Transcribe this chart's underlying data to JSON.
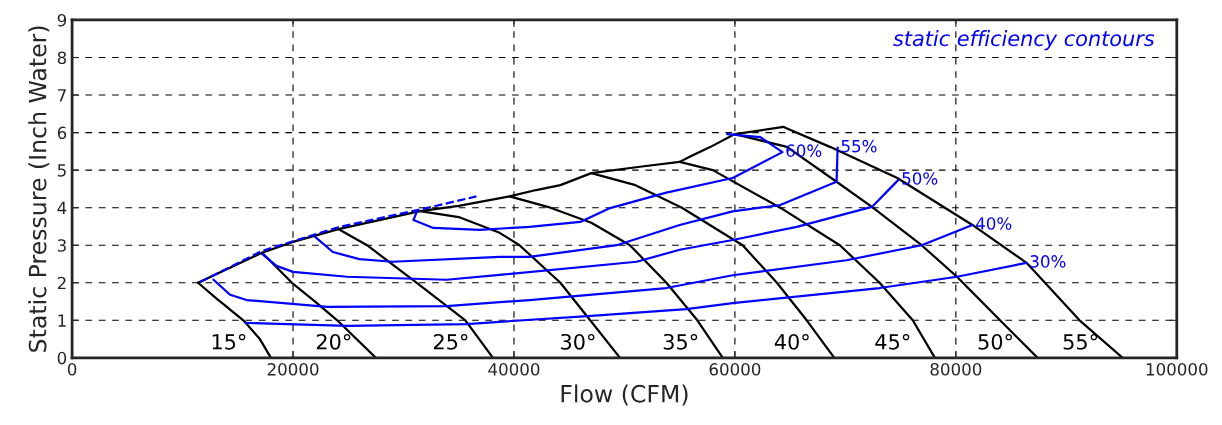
{
  "chart_data": {
    "type": "line",
    "xlabel": "Flow (CFM)",
    "ylabel": "Static Pressure (Inch Water)",
    "annotations": [
      "static efficiency contours"
    ],
    "xlim": [
      0,
      100000
    ],
    "xticks": [
      0,
      20000,
      40000,
      60000,
      80000,
      100000
    ],
    "ylim": [
      0,
      9
    ],
    "yticks": [
      0,
      1,
      2,
      3,
      4,
      5,
      6,
      7,
      8,
      9
    ],
    "grid": true,
    "legend": false,
    "marker": "none",
    "series": [
      {
        "color": "#000000",
        "x": [
          11400,
          17200,
          20000,
          24100,
          31500,
          35000,
          39600,
          42000,
          44200,
          47000,
          51400,
          55000,
          56000,
          57800,
          60000,
          64400
        ],
        "values": [
          2.0,
          2.8,
          3.09,
          3.43,
          3.91,
          4.05,
          4.3,
          4.47,
          4.6,
          4.92,
          5.09,
          5.22,
          5.37,
          5.62,
          5.96,
          6.15
        ]
      },
      {
        "name": "15°",
        "color": "#000000",
        "x": [
          11400,
          13000,
          15500,
          17000,
          18000
        ],
        "values": [
          2.0,
          1.6,
          1.0,
          0.5,
          0
        ]
      },
      {
        "name": "20°",
        "color": "#000000",
        "x": [
          17200,
          19900,
          22000,
          24000,
          27500
        ],
        "values": [
          2.8,
          2.0,
          1.5,
          1.0,
          0
        ]
      },
      {
        "name": "25°",
        "color": "#000000",
        "x": [
          24100,
          26700,
          31200,
          35600,
          38100
        ],
        "values": [
          3.43,
          3.0,
          2.0,
          1.0,
          0
        ]
      },
      {
        "name": "30°",
        "color": "#000000",
        "x": [
          31500,
          35000,
          38700,
          40500,
          44200,
          46900,
          49600
        ],
        "values": [
          3.91,
          3.75,
          3.33,
          3.0,
          2.0,
          1.0,
          0
        ]
      },
      {
        "name": "35°",
        "color": "#000000",
        "x": [
          39600,
          43300,
          47000,
          50500,
          53800,
          56600,
          58900
        ],
        "values": [
          4.3,
          4.0,
          3.6,
          3.0,
          2.0,
          1.0,
          0
        ]
      },
      {
        "name": "40°",
        "color": "#000000",
        "x": [
          47000,
          51000,
          55200,
          60700,
          63800,
          66500,
          69000
        ],
        "values": [
          4.92,
          4.6,
          4.0,
          3.0,
          2.0,
          1.0,
          0
        ]
      },
      {
        "name": "45°",
        "color": "#000000",
        "x": [
          55000,
          58000,
          64100,
          69500,
          73100,
          76100,
          78100
        ],
        "values": [
          5.22,
          5.0,
          4.0,
          3.0,
          2.0,
          1.0,
          0
        ]
      },
      {
        "name": "50°",
        "color": "#000000",
        "x": [
          60000,
          64700,
          69200,
          72400,
          76900,
          80100,
          84000,
          87400
        ],
        "values": [
          5.96,
          5.62,
          4.69,
          4.02,
          3.0,
          2.16,
          1.0,
          0
        ]
      },
      {
        "name": "55°",
        "color": "#000000",
        "x": [
          64400,
          68600,
          74700,
          81500,
          86400,
          91200,
          95100
        ],
        "values": [
          6.15,
          5.62,
          4.79,
          3.54,
          2.53,
          1.0,
          0
        ]
      },
      {
        "color": "#0000ff",
        "line_style": "dashed",
        "x": [
          11600,
          17200,
          24100,
          31500,
          36600
        ],
        "values": [
          2.02,
          2.85,
          3.48,
          3.95,
          4.3
        ]
      },
      {
        "name": "30%",
        "color": "#0000ff",
        "x": [
          15700,
          24900,
          35700,
          38700,
          47000,
          55600,
          59800,
          73100,
          80100,
          86400
        ],
        "values": [
          0.93,
          0.85,
          0.9,
          0.96,
          1.12,
          1.3,
          1.46,
          1.86,
          2.16,
          2.53
        ]
      },
      {
        "name": "40%",
        "color": "#0000ff",
        "x": [
          12800,
          14300,
          15800,
          23100,
          33900,
          41400,
          53800,
          59800,
          70100,
          76900,
          81500
        ],
        "values": [
          2.08,
          1.68,
          1.54,
          1.36,
          1.38,
          1.54,
          1.86,
          2.2,
          2.6,
          3.0,
          3.54
        ]
      },
      {
        "name": "50%",
        "color": "#0000ff",
        "x": [
          17200,
          18500,
          20000,
          24900,
          33900,
          38700,
          51100,
          55000,
          59800,
          65600,
          72400,
          74800
        ],
        "values": [
          2.77,
          2.45,
          2.29,
          2.16,
          2.08,
          2.21,
          2.56,
          2.88,
          3.14,
          3.49,
          4.02,
          4.74
        ]
      },
      {
        "name": "55%",
        "color": "#0000ff",
        "x": [
          22000,
          23600,
          26000,
          29000,
          38700,
          41400,
          49300,
          55000,
          59800,
          64100,
          69200,
          69300
        ],
        "values": [
          3.22,
          2.82,
          2.63,
          2.56,
          2.69,
          2.69,
          3.0,
          3.54,
          3.9,
          4.07,
          4.69,
          5.6
        ]
      },
      {
        "name": "60%",
        "color": "#0000ff",
        "x": [
          31200,
          30900,
          32700,
          36900,
          41400,
          46000,
          48700,
          53800,
          59800,
          64300,
          62300,
          59300
        ],
        "values": [
          3.89,
          3.67,
          3.46,
          3.41,
          3.49,
          3.62,
          3.99,
          4.4,
          4.79,
          5.48,
          5.88,
          5.96
        ]
      }
    ]
  }
}
